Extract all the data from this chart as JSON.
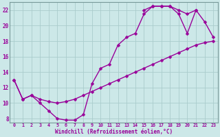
{
  "xlabel": "Windchill (Refroidissement éolien,°C)",
  "background_color": "#cce8e8",
  "line_color": "#990099",
  "grid_color": "#aacccc",
  "xlim": [
    -0.5,
    23.5
  ],
  "ylim": [
    7.5,
    23.0
  ],
  "yticks": [
    8,
    10,
    12,
    14,
    16,
    18,
    20,
    22
  ],
  "xticks": [
    0,
    1,
    2,
    3,
    4,
    5,
    6,
    7,
    8,
    9,
    10,
    11,
    12,
    13,
    14,
    15,
    16,
    17,
    18,
    19,
    20,
    21,
    22,
    23
  ],
  "curve1_x": [
    0,
    1,
    2,
    3,
    4,
    5,
    6,
    7,
    8,
    9,
    10,
    11,
    12,
    13,
    14,
    15,
    16,
    17,
    18,
    19,
    20,
    21
  ],
  "curve1_y": [
    13,
    10.5,
    11.0,
    10.0,
    9.0,
    8.0,
    7.8,
    7.8,
    8.5,
    12.5,
    14.5,
    15.0,
    17.5,
    18.5,
    19.0,
    21.5,
    22.5,
    22.5,
    22.5,
    21.5,
    19.0,
    22.0
  ],
  "curve2_x": [
    15,
    16,
    17,
    18,
    19,
    20,
    21,
    22,
    23
  ],
  "curve2_y": [
    22.0,
    22.5,
    22.5,
    22.5,
    22.0,
    21.5,
    22.0,
    20.5,
    18.5
  ],
  "curve3_x": [
    0,
    1,
    2,
    3,
    4,
    5,
    6,
    7,
    8,
    9,
    10,
    11,
    12,
    13,
    14,
    15,
    16,
    17,
    18,
    19,
    20,
    21,
    22,
    23
  ],
  "curve3_y": [
    13,
    10.5,
    11.0,
    10.5,
    10.2,
    10.0,
    10.2,
    10.5,
    11.0,
    11.5,
    12.0,
    12.5,
    13.0,
    13.5,
    14.0,
    14.5,
    15.0,
    15.5,
    16.0,
    16.5,
    17.0,
    17.5,
    17.8,
    18.0
  ],
  "marker": "D",
  "markersize": 2.5,
  "linewidth": 1.0
}
